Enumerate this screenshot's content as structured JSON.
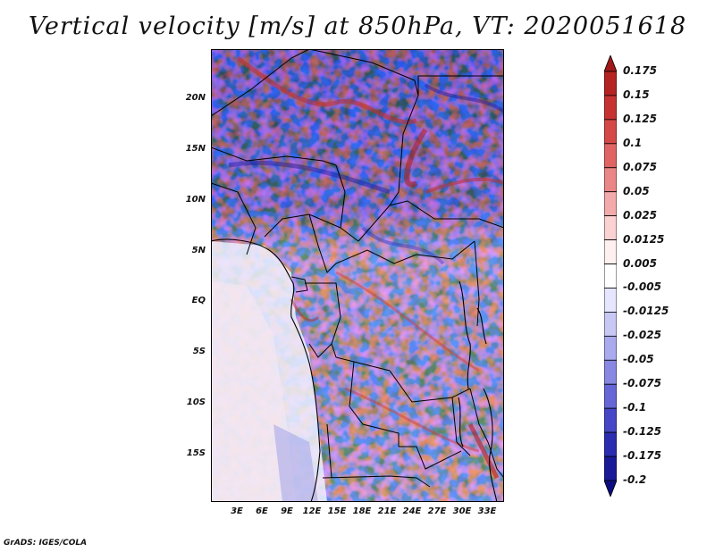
{
  "title": "Vertical velocity [m/s] at 850hPa, VT: 2020051618",
  "credit": "GrADS: IGES/COLA",
  "map": {
    "lat_ticks": [
      "20N",
      "15N",
      "10N",
      "5N",
      "EQ",
      "5S",
      "10S",
      "15S"
    ],
    "lon_ticks": [
      "3E",
      "6E",
      "9E",
      "12E",
      "15E",
      "18E",
      "21E",
      "24E",
      "27E",
      "30E",
      "33E"
    ],
    "lat_values": [
      20,
      15,
      10,
      5,
      0,
      -5,
      -10,
      -15
    ],
    "lon_values": [
      3,
      6,
      9,
      12,
      15,
      18,
      21,
      24,
      27,
      30,
      33
    ],
    "lat_range": [
      -20,
      24.5
    ],
    "lon_range": [
      0,
      35
    ]
  },
  "colorbar": {
    "labels": [
      "0.175",
      "0.15",
      "0.125",
      "0.1",
      "0.075",
      "0.05",
      "0.025",
      "0.0125",
      "0.005",
      "-0.005",
      "-0.0125",
      "-0.025",
      "-0.05",
      "-0.075",
      "-0.1",
      "-0.125",
      "-0.175",
      "-0.2"
    ],
    "colors": [
      "#a01818",
      "#b42222",
      "#c63232",
      "#d54848",
      "#e06464",
      "#ea8686",
      "#f3aaaa",
      "#fad2d2",
      "#fff0f0",
      "#ffffff",
      "#e6e6ff",
      "#c8c8f5",
      "#aaaaee",
      "#8888e2",
      "#6666d6",
      "#4646c6",
      "#2c2cb0",
      "#1a1a98",
      "#0c0c80"
    ]
  }
}
